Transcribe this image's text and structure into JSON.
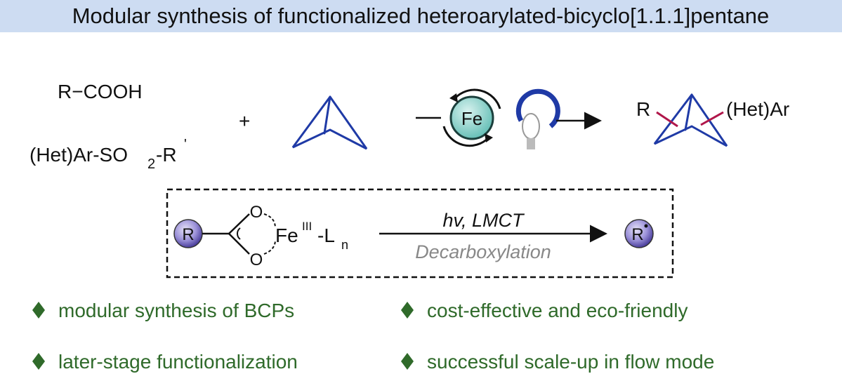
{
  "header": {
    "title": "Modular synthesis of functionalized heteroarylated-bicyclo[1.1.1]pentane"
  },
  "reaction": {
    "reagent1": "R−COOH",
    "plus": "+",
    "reagent2": [
      "(Het)Ar-SO",
      "2",
      "-R",
      "'"
    ],
    "catalyst": "Fe",
    "product": {
      "r_group": "R",
      "aryl": "(Het)Ar"
    }
  },
  "mechanism": {
    "r_group": "R",
    "oxygen_top": "O",
    "oxygen_bottom": "O",
    "iron": [
      "Fe",
      "III",
      "-L",
      "n"
    ],
    "conditions": "hv, LMCT",
    "process": "Decarboxylation",
    "radical": "R"
  },
  "features": [
    "modular synthesis of BCPs",
    "cost-effective and eco-friendly",
    "later-stage functionalization",
    "successful scale-up in flow mode"
  ]
}
